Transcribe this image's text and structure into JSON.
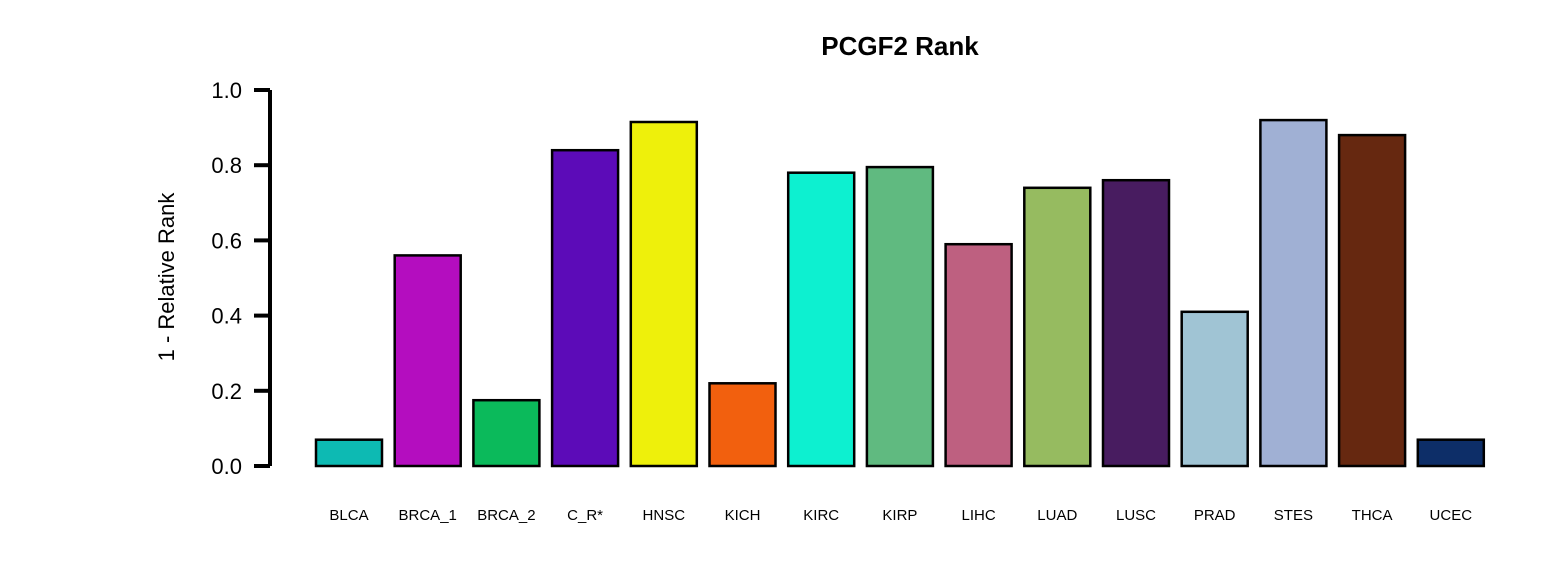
{
  "chart_data": {
    "type": "bar",
    "title": "PCGF2 Rank",
    "xlabel": "",
    "ylabel": "1 - Relative Rank",
    "ylim": [
      0,
      1
    ],
    "yticks": [
      "0.0",
      "0.2",
      "0.4",
      "0.6",
      "0.8",
      "1.0"
    ],
    "grid": false,
    "legend": "none",
    "categories": [
      "BLCA",
      "BRCA_1",
      "BRCA_2",
      "C_R*",
      "HNSC",
      "KICH",
      "KIRC",
      "KIRP",
      "LIHC",
      "LUAD",
      "LUSC",
      "PRAD",
      "STES",
      "THCA",
      "UCEC"
    ],
    "values": [
      0.07,
      0.56,
      0.175,
      0.84,
      0.915,
      0.22,
      0.78,
      0.795,
      0.59,
      0.74,
      0.76,
      0.41,
      0.92,
      0.88,
      0.07
    ],
    "colors": [
      "#0dbab3",
      "#b40dbf",
      "#0bba5b",
      "#5c0bb8",
      "#eef00b",
      "#f2600e",
      "#0df0d0",
      "#60ba80",
      "#be6080",
      "#96bb60",
      "#481c60",
      "#a0c4d4",
      "#a0b0d4",
      "#662810",
      "#0d2e68"
    ]
  }
}
